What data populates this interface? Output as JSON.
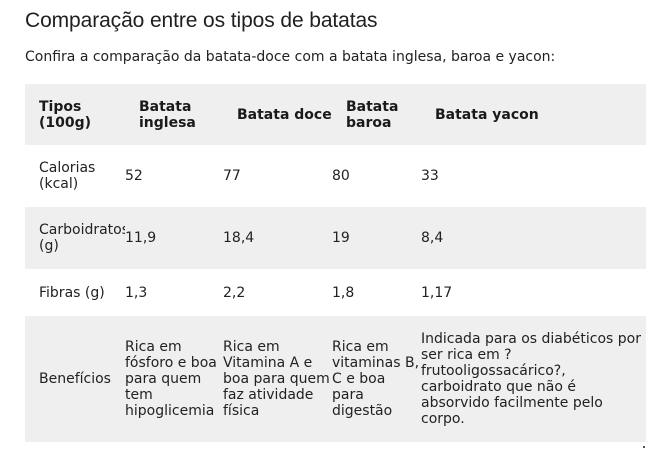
{
  "title": "Comparação entre os tipos de batatas",
  "intro": "Confira a comparação da batata-doce com a batata inglesa, baroa e yacon:",
  "table": {
    "headers": [
      "Tipos (100g)",
      "Batata inglesa",
      "Batata doce",
      "Batata baroa",
      "Batata yacon"
    ],
    "rows": [
      [
        "Calorias (kcal)",
        "52",
        "77",
        "80",
        "33"
      ],
      [
        "Carboidratos (g)",
        "11,9",
        "18,4",
        "19",
        "8,4"
      ],
      [
        "Fibras (g)",
        "1,3",
        "2,2",
        "1,8",
        "1,17"
      ],
      [
        "Benefícios",
        "Rica em fósforo e boa para quem tem hipoglicemia",
        "Rica em Vitamina A e boa para quem faz atividade física",
        "Rica em vitaminas B, C e boa para digestão",
        "Indicada para os diabéticos por ser rica em ? frutooligossacárico?, carboidrato que não é absorvido facilmente pelo corpo."
      ]
    ]
  },
  "colors": {
    "shade": "#efefef",
    "text": "#1f1f1f"
  }
}
